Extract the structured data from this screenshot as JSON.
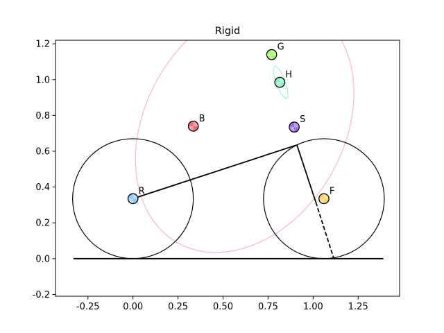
{
  "chart_data": {
    "type": "scatter",
    "title": "Rigid",
    "xlabel": "",
    "ylabel": "",
    "xlim": [
      -0.43,
      1.48
    ],
    "ylim": [
      -0.21,
      1.22
    ],
    "xticks": [
      "-0.25",
      "0.00",
      "0.25",
      "0.50",
      "0.75",
      "1.00",
      "1.25"
    ],
    "yticks": [
      "-0.2",
      "0.0",
      "0.2",
      "0.4",
      "0.6",
      "0.8",
      "1.0",
      "1.2"
    ],
    "grid": false,
    "ground": {
      "x": [
        -0.33,
        1.39
      ],
      "y": 0.0
    },
    "wheels": [
      {
        "name": "rear",
        "cx": 0.0,
        "cy": 0.335,
        "r": 0.335
      },
      {
        "name": "front",
        "cx": 1.06,
        "cy": 0.335,
        "r": 0.335
      }
    ],
    "frame_lines": [
      {
        "from": [
          0.0,
          0.335
        ],
        "to": [
          0.91,
          0.635
        ],
        "style": "solid"
      },
      {
        "from": [
          0.91,
          0.635
        ],
        "to": [
          1.015,
          0.315
        ],
        "style": "solid"
      },
      {
        "from": [
          1.015,
          0.315
        ],
        "to": [
          1.115,
          0.0
        ],
        "style": "dashed"
      }
    ],
    "ellipses": [
      {
        "name": "B-ellipse",
        "cx": 0.62,
        "cy": 0.74,
        "rx": 0.55,
        "ry": 0.75,
        "rotation_deg": -30,
        "color": "#ffb6c1"
      },
      {
        "name": "H-ellipse",
        "cx": 0.82,
        "cy": 0.985,
        "rx": 0.025,
        "ry": 0.095,
        "rotation_deg": 20,
        "color": "#9ff3d8"
      }
    ],
    "points": [
      {
        "label": "R",
        "x": 0.0,
        "y": 0.335,
        "color": "#8ec8ff"
      },
      {
        "label": "B",
        "x": 0.335,
        "y": 0.74,
        "color": "#f06a7a"
      },
      {
        "label": "G",
        "x": 0.77,
        "y": 1.14,
        "color": "#a8ff70"
      },
      {
        "label": "H",
        "x": 0.815,
        "y": 0.985,
        "color": "#8ff0c8"
      },
      {
        "label": "S",
        "x": 0.895,
        "y": 0.735,
        "color": "#9a70f0"
      },
      {
        "label": "F",
        "x": 1.06,
        "y": 0.335,
        "color": "#ffd36b"
      }
    ]
  }
}
